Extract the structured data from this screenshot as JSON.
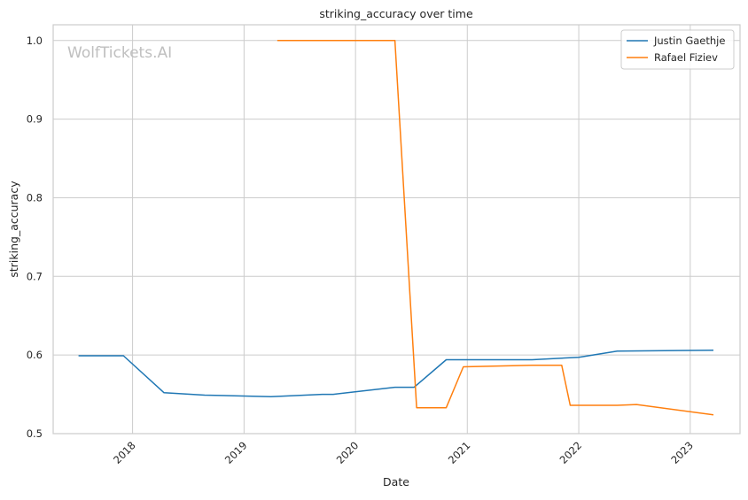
{
  "chart_data": {
    "type": "line",
    "title": "striking_accuracy over time",
    "xlabel": "Date",
    "ylabel": "striking_accuracy",
    "watermark": "WolfTickets.AI",
    "xlim": [
      "2017-04-16",
      "2023-06-13"
    ],
    "ylim": [
      0.5,
      1.02
    ],
    "x_ticks": [
      {
        "value": "2018-01-01",
        "label": "2018"
      },
      {
        "value": "2019-01-01",
        "label": "2019"
      },
      {
        "value": "2020-01-01",
        "label": "2020"
      },
      {
        "value": "2021-01-01",
        "label": "2021"
      },
      {
        "value": "2022-01-01",
        "label": "2022"
      },
      {
        "value": "2023-01-01",
        "label": "2023"
      }
    ],
    "y_ticks": [
      0.5,
      0.6,
      0.7,
      0.8,
      0.9,
      1.0
    ],
    "grid": true,
    "legend_position": "top-right",
    "series": [
      {
        "name": "Justin Gaethje",
        "color": "#1f77b4",
        "points": [
          {
            "x": "2017-07-08",
            "y": 0.599
          },
          {
            "x": "2017-12-02",
            "y": 0.599
          },
          {
            "x": "2018-04-14",
            "y": 0.552
          },
          {
            "x": "2018-08-25",
            "y": 0.549
          },
          {
            "x": "2019-03-30",
            "y": 0.547
          },
          {
            "x": "2019-09-14",
            "y": 0.55
          },
          {
            "x": "2019-10-20",
            "y": 0.55
          },
          {
            "x": "2020-05-09",
            "y": 0.559
          },
          {
            "x": "2020-07-11",
            "y": 0.559
          },
          {
            "x": "2020-10-24",
            "y": 0.594
          },
          {
            "x": "2021-08-01",
            "y": 0.594
          },
          {
            "x": "2021-11-06",
            "y": 0.596
          },
          {
            "x": "2022-01-01",
            "y": 0.597
          },
          {
            "x": "2022-05-07",
            "y": 0.605
          },
          {
            "x": "2023-03-18",
            "y": 0.606
          }
        ]
      },
      {
        "name": "Rafael Fiziev",
        "color": "#ff7f0e",
        "points": [
          {
            "x": "2019-04-20",
            "y": 1.0
          },
          {
            "x": "2020-05-09",
            "y": 1.0
          },
          {
            "x": "2020-07-19",
            "y": 0.533
          },
          {
            "x": "2020-10-24",
            "y": 0.533
          },
          {
            "x": "2020-12-19",
            "y": 0.585
          },
          {
            "x": "2021-08-01",
            "y": 0.587
          },
          {
            "x": "2021-11-06",
            "y": 0.587
          },
          {
            "x": "2021-12-04",
            "y": 0.536
          },
          {
            "x": "2022-05-07",
            "y": 0.536
          },
          {
            "x": "2022-07-09",
            "y": 0.537
          },
          {
            "x": "2023-03-18",
            "y": 0.524
          }
        ]
      }
    ]
  }
}
